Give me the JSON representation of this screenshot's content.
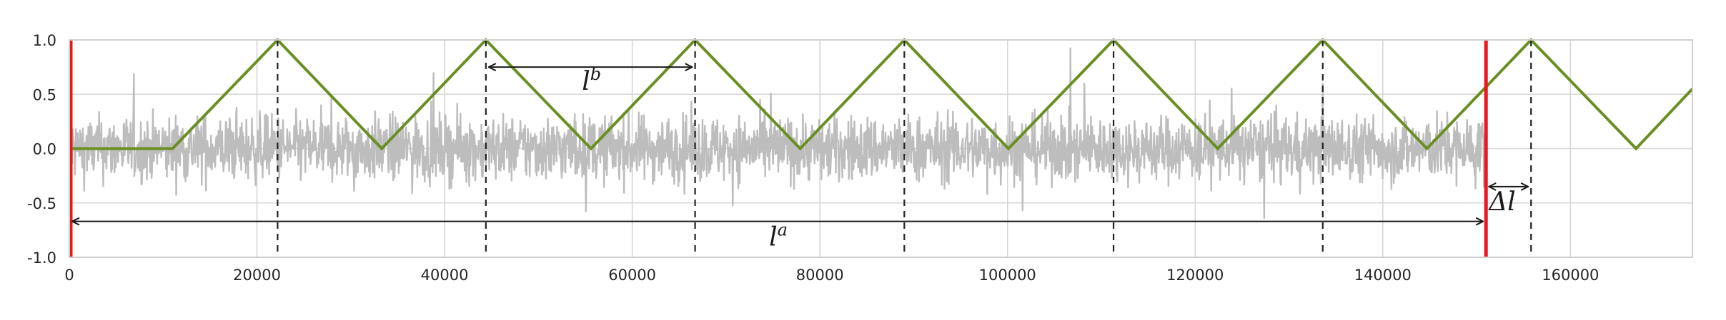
{
  "chart_data": {
    "type": "line",
    "title": "",
    "xlabel": "",
    "ylabel": "",
    "xlim": [
      0,
      173000
    ],
    "ylim": [
      -1.0,
      1.0
    ],
    "grid": true,
    "x_ticks": [
      0,
      20000,
      40000,
      60000,
      80000,
      100000,
      120000,
      140000,
      160000
    ],
    "x_tick_labels": [
      "0",
      "20000",
      "40000",
      "60000",
      "80000",
      "100000",
      "120000",
      "140000",
      "160000"
    ],
    "y_ticks": [
      1.0,
      0.5,
      0.0,
      -0.5,
      -1.0
    ],
    "y_tick_labels": [
      "1.0",
      "0.5",
      "0.0",
      "-0.5",
      "-1.0"
    ],
    "signal": {
      "description_color": "#bdbdbd",
      "x_start": 0,
      "x_end": 151000,
      "amplitude_typical": 0.35,
      "amplitude_peak": 0.95
    },
    "series": [
      {
        "color": "#6b8e23",
        "x": [
          0,
          11000,
          22200,
          33300,
          44400,
          55600,
          66700,
          77900,
          89000,
          100100,
          111300,
          122400,
          133600,
          144700,
          155800,
          167000,
          173000
        ],
        "y": [
          0.0,
          0.0,
          1.0,
          0.0,
          1.0,
          0.0,
          1.0,
          0.0,
          1.0,
          0.0,
          1.0,
          0.0,
          1.0,
          0.0,
          1.0,
          0.0,
          0.55
        ]
      }
    ],
    "vertical_red_lines": [
      {
        "x": 0,
        "color": "#e8191d"
      },
      {
        "x": 151000,
        "color": "#e8191d"
      }
    ],
    "vertical_dashed_lines": [
      22200,
      44400,
      66700,
      89000,
      111300,
      133600,
      155800
    ],
    "annotations": [
      {
        "label_base": "l",
        "label_sup": "b",
        "x_from": 44400,
        "x_to": 66700,
        "y": 0.75
      },
      {
        "label_base": "l",
        "label_sup": "a",
        "x_from": 0,
        "x_to": 151000,
        "y": -0.67
      },
      {
        "label_base": "Δl",
        "label_sup": "",
        "x_from": 151000,
        "x_to": 155800,
        "y": -0.35
      }
    ],
    "colors": {
      "grid": "#d6d6d6",
      "axes_edge": "#cfcfcf",
      "arrows": "#1a1a1a"
    }
  }
}
